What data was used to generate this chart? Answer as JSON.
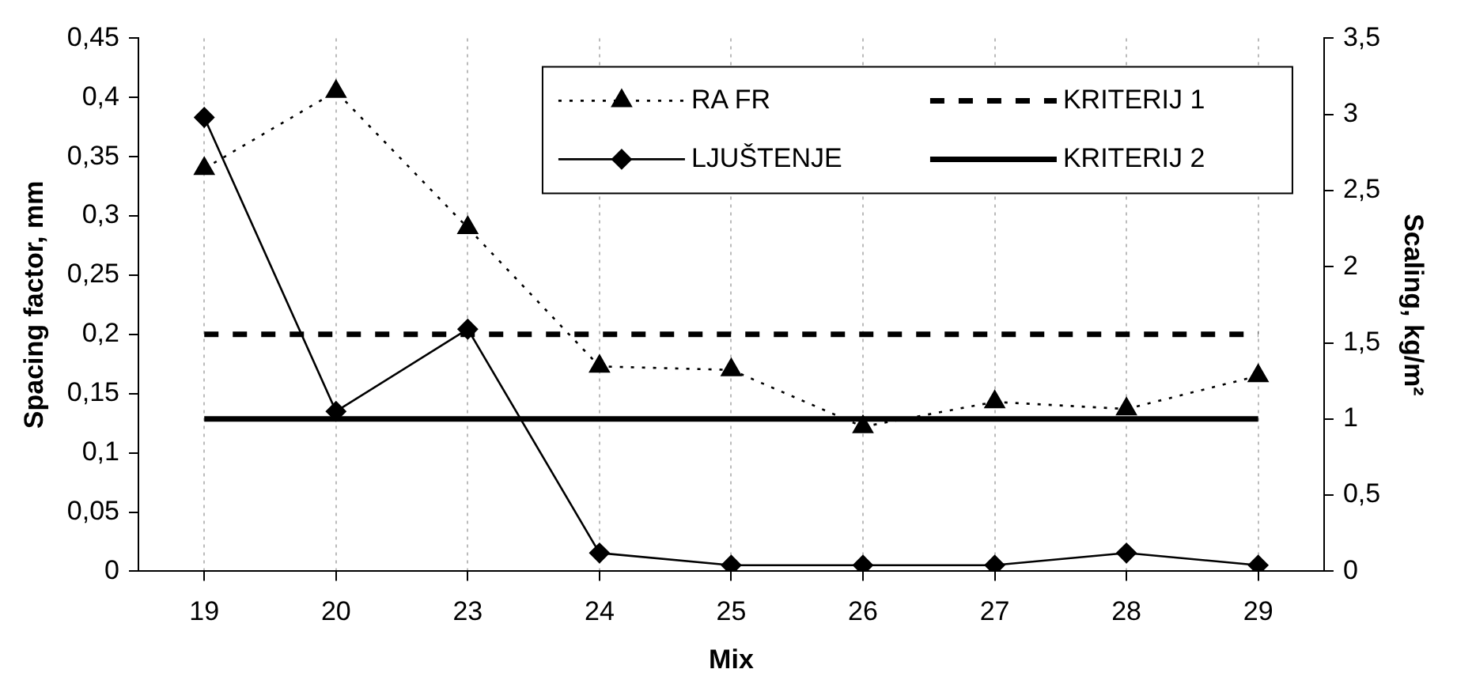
{
  "chart_data": {
    "type": "line",
    "xlabel": "Mix",
    "ylabel": "Spacing factor, mm",
    "y2label": "Scaling, kg/m²",
    "categories": [
      "19",
      "20",
      "23",
      "24",
      "25",
      "26",
      "27",
      "28",
      "29"
    ],
    "series": [
      {
        "name": "RA FR",
        "color": "#000000",
        "marker": "triangle",
        "line_style": "dotted",
        "values": [
          0.34,
          0.405,
          0.29,
          0.173,
          0.17,
          0.122,
          0.143,
          0.137,
          0.165
        ]
      },
      {
        "name": "LJUŠTENJE",
        "color": "#000000",
        "marker": "diamond",
        "line_style": "solid",
        "axis": "y2",
        "values": [
          2.98,
          1.05,
          1.59,
          0.12,
          0.04,
          0.04,
          0.04,
          0.12,
          0.04
        ]
      }
    ],
    "ref_lines": [
      {
        "axis": "y",
        "value": 0.2,
        "label": "KRITERIJ 1",
        "color": "#000000",
        "line_style": "dashed"
      },
      {
        "axis": "y2",
        "value": 1,
        "label": "KRITERIJ 2",
        "color": "#000000",
        "line_style": "solid"
      }
    ],
    "ylim": [
      0,
      0.45
    ],
    "yticks": [
      0,
      {
        "value": 0.05,
        "label": "0,05"
      },
      {
        "value": 0.1,
        "label": "0,1"
      },
      {
        "value": 0.15,
        "label": "0,15"
      },
      {
        "value": 0.2,
        "label": "0,2"
      },
      {
        "value": 0.25,
        "label": "0,25"
      },
      {
        "value": 0.3,
        "label": "0,3"
      },
      {
        "value": 0.35,
        "label": "0,35"
      },
      {
        "value": 0.4,
        "label": "0,4"
      },
      {
        "value": 0.45,
        "label": "0,45"
      }
    ],
    "y2lim": [
      0,
      3.5
    ],
    "y2ticks": [
      0,
      {
        "value": 0.5,
        "label": "0,5"
      },
      1,
      {
        "value": 1.5,
        "label": "1,5"
      },
      2,
      {
        "value": 2.5,
        "label": "2,5"
      },
      3,
      {
        "value": 3.5,
        "label": "3,5"
      }
    ],
    "grid": "x",
    "legend": "top right"
  }
}
